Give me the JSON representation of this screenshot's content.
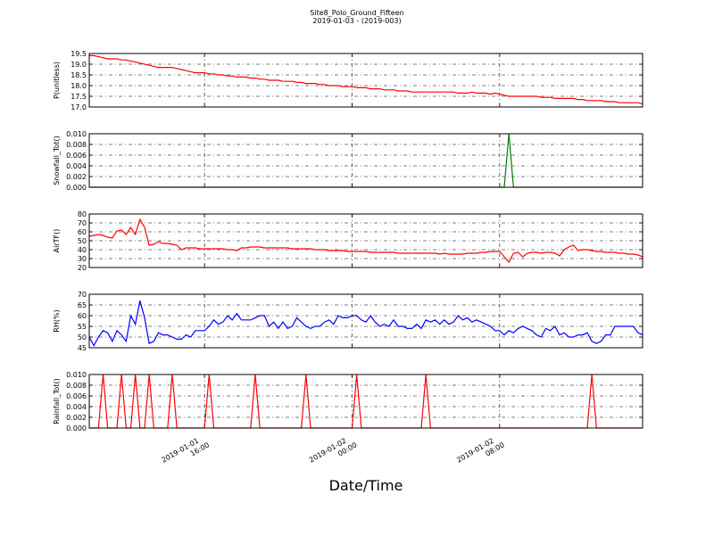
{
  "chart_data": {
    "type": "line",
    "title": "Site8_Polo_Ground_Fifteen",
    "subtitle": "2019-01-03 - (2019-003)",
    "xlabel": "Date/Time",
    "grid": true,
    "x": [
      "2019-01-01T09:45",
      "2019-01-01T10:00",
      "2019-01-01T10:15",
      "2019-01-01T10:30",
      "2019-01-01T10:45",
      "2019-01-01T11:00",
      "2019-01-01T11:15",
      "2019-01-01T11:30",
      "2019-01-01T11:45",
      "2019-01-01T12:00",
      "2019-01-01T12:15",
      "2019-01-01T12:30",
      "2019-01-01T12:45",
      "2019-01-01T13:00",
      "2019-01-01T13:15",
      "2019-01-01T13:30",
      "2019-01-01T13:45",
      "2019-01-01T14:00",
      "2019-01-01T14:15",
      "2019-01-01T14:30",
      "2019-01-01T14:45",
      "2019-01-01T15:00",
      "2019-01-01T15:15",
      "2019-01-01T15:30",
      "2019-01-01T15:45",
      "2019-01-01T16:00",
      "2019-01-01T16:15",
      "2019-01-01T16:30",
      "2019-01-01T16:45",
      "2019-01-01T17:00",
      "2019-01-01T17:15",
      "2019-01-01T17:30",
      "2019-01-01T17:45",
      "2019-01-01T18:00",
      "2019-01-01T18:15",
      "2019-01-01T18:30",
      "2019-01-01T18:45",
      "2019-01-01T19:00",
      "2019-01-01T19:15",
      "2019-01-01T19:30",
      "2019-01-01T19:45",
      "2019-01-01T20:00",
      "2019-01-01T20:15",
      "2019-01-01T20:30",
      "2019-01-01T20:45",
      "2019-01-01T21:00",
      "2019-01-01T21:15",
      "2019-01-01T21:30",
      "2019-01-01T21:45",
      "2019-01-01T22:00",
      "2019-01-01T22:15",
      "2019-01-01T22:30",
      "2019-01-01T22:45",
      "2019-01-01T23:00",
      "2019-01-01T23:15",
      "2019-01-01T23:30",
      "2019-01-01T23:45",
      "2019-01-02T00:00",
      "2019-01-02T00:15",
      "2019-01-02T00:30",
      "2019-01-02T00:45",
      "2019-01-02T01:00",
      "2019-01-02T01:15",
      "2019-01-02T01:30",
      "2019-01-02T01:45",
      "2019-01-02T02:00",
      "2019-01-02T02:15",
      "2019-01-02T02:30",
      "2019-01-02T02:45",
      "2019-01-02T03:00",
      "2019-01-02T03:15",
      "2019-01-02T03:30",
      "2019-01-02T03:45",
      "2019-01-02T04:00",
      "2019-01-02T04:15",
      "2019-01-02T04:30",
      "2019-01-02T04:45",
      "2019-01-02T05:00",
      "2019-01-02T05:15",
      "2019-01-02T05:30",
      "2019-01-02T05:45",
      "2019-01-02T06:00",
      "2019-01-02T06:15",
      "2019-01-02T06:30",
      "2019-01-02T06:45",
      "2019-01-02T07:00",
      "2019-01-02T07:15",
      "2019-01-02T07:30",
      "2019-01-02T07:45",
      "2019-01-02T08:00",
      "2019-01-02T08:15",
      "2019-01-02T08:30",
      "2019-01-02T08:45",
      "2019-01-02T09:00",
      "2019-01-02T09:15",
      "2019-01-02T09:30",
      "2019-01-02T09:45",
      "2019-01-02T10:00",
      "2019-01-02T10:15",
      "2019-01-02T10:30",
      "2019-01-02T10:45",
      "2019-01-02T11:00",
      "2019-01-02T11:15",
      "2019-01-02T11:30",
      "2019-01-02T11:45",
      "2019-01-02T12:00",
      "2019-01-02T12:15",
      "2019-01-02T12:30",
      "2019-01-02T12:45",
      "2019-01-02T13:00",
      "2019-01-02T13:15",
      "2019-01-02T13:30",
      "2019-01-02T13:45",
      "2019-01-02T14:00",
      "2019-01-02T14:15",
      "2019-01-02T14:30",
      "2019-01-02T14:45",
      "2019-01-02T15:00",
      "2019-01-02T15:15",
      "2019-01-02T15:30",
      "2019-01-02T15:45"
    ],
    "xlim": [
      "2019-01-01T09:45",
      "2019-01-02T15:45"
    ],
    "xticks": [
      {
        "value": "2019-01-01T16:00",
        "label": [
          "2019-01-01",
          "16:00"
        ]
      },
      {
        "value": "2019-01-02T00:00",
        "label": [
          "2019-01-02",
          "00:00"
        ]
      },
      {
        "value": "2019-01-02T08:00",
        "label": [
          "2019-01-02",
          "08:00"
        ]
      }
    ],
    "panels": [
      {
        "ylabel": "P(unitless)",
        "ylim": [
          17.0,
          19.5
        ],
        "yticks": [
          {
            "value": 17,
            "label": "17.0"
          },
          17.5,
          {
            "value": 18,
            "label": "18.0"
          },
          18.5,
          {
            "value": 19,
            "label": "19.0"
          },
          19.5
        ],
        "series": [
          {
            "color": "#ff0000",
            "values": [
              19.4,
              19.4,
              19.35,
              19.3,
              19.25,
              19.25,
              19.25,
              19.2,
              19.2,
              19.15,
              19.1,
              19.05,
              19.0,
              18.95,
              18.9,
              18.85,
              18.85,
              18.85,
              18.85,
              18.8,
              18.75,
              18.7,
              18.65,
              18.6,
              18.6,
              18.6,
              18.55,
              18.55,
              18.5,
              18.5,
              18.45,
              18.45,
              18.4,
              18.4,
              18.4,
              18.35,
              18.35,
              18.3,
              18.3,
              18.25,
              18.25,
              18.25,
              18.2,
              18.2,
              18.2,
              18.15,
              18.15,
              18.1,
              18.1,
              18.1,
              18.05,
              18.05,
              18.0,
              18.0,
              18.0,
              17.95,
              17.95,
              17.95,
              17.9,
              17.9,
              17.9,
              17.85,
              17.85,
              17.85,
              17.8,
              17.8,
              17.8,
              17.75,
              17.75,
              17.75,
              17.7,
              17.7,
              17.7,
              17.7,
              17.7,
              17.7,
              17.7,
              17.7,
              17.7,
              17.7,
              17.65,
              17.65,
              17.65,
              17.7,
              17.65,
              17.65,
              17.65,
              17.6,
              17.65,
              17.6,
              17.55,
              17.5,
              17.5,
              17.5,
              17.5,
              17.5,
              17.5,
              17.5,
              17.45,
              17.45,
              17.45,
              17.4,
              17.4,
              17.4,
              17.4,
              17.4,
              17.35,
              17.35,
              17.3,
              17.3,
              17.3,
              17.3,
              17.25,
              17.25,
              17.25,
              17.2,
              17.2,
              17.2,
              17.2,
              17.2,
              17.15
            ]
          }
        ]
      },
      {
        "ylabel": "Snowfall_Tot()",
        "ylim": [
          0,
          0.01
        ],
        "yticks": [
          {
            "value": 0,
            "label": "0.000"
          },
          {
            "value": 0.002,
            "label": "0.002"
          },
          {
            "value": 0.004,
            "label": "0.004"
          },
          {
            "value": 0.006,
            "label": "0.006"
          },
          {
            "value": 0.008,
            "label": "0.008"
          },
          {
            "value": 0.01,
            "label": "0.010"
          }
        ],
        "series": [
          {
            "color": "#008000",
            "values": [
              0,
              0,
              0,
              0,
              0,
              0,
              0,
              0,
              0,
              0,
              0,
              0,
              0,
              0,
              0,
              0,
              0,
              0,
              0,
              0,
              0,
              0,
              0,
              0,
              0,
              0,
              0,
              0,
              0,
              0,
              0,
              0,
              0,
              0,
              0,
              0,
              0,
              0,
              0,
              0,
              0,
              0,
              0,
              0,
              0,
              0,
              0,
              0,
              0,
              0,
              0,
              0,
              0,
              0,
              0,
              0,
              0,
              0,
              0,
              0,
              0,
              0,
              0,
              0,
              0,
              0,
              0,
              0,
              0,
              0,
              0,
              0,
              0,
              0,
              0,
              0,
              0,
              0,
              0,
              0,
              0,
              0,
              0,
              0,
              0,
              0,
              0,
              0,
              0,
              0,
              0,
              0.01,
              0,
              0,
              0,
              0,
              0,
              0,
              0,
              0,
              0,
              0,
              0,
              0,
              0,
              0,
              0,
              0,
              0,
              0,
              0,
              0,
              0,
              0,
              0,
              0,
              0,
              0,
              0,
              0,
              0
            ]
          }
        ]
      },
      {
        "ylabel": "AirTF()",
        "ylim": [
          20,
          80
        ],
        "yticks": [
          20,
          30,
          40,
          50,
          60,
          70,
          80
        ],
        "series": [
          {
            "color": "#ff0000",
            "values": [
              55,
              56,
              57,
              56,
              54,
              53,
              61,
              62,
              57,
              65,
              57,
              74,
              65,
              45,
              46,
              49,
              47,
              47,
              46,
              45,
              40,
              42,
              42,
              42,
              41,
              41,
              41,
              41,
              41,
              41,
              40,
              40,
              39,
              42,
              42,
              43,
              43,
              43,
              42,
              42,
              42,
              42,
              42,
              42,
              41,
              41,
              41,
              41,
              41,
              40,
              40,
              40,
              39,
              39,
              39,
              39,
              38,
              38,
              38,
              38,
              38,
              37,
              37,
              37,
              37,
              37,
              37,
              36,
              36,
              36,
              36,
              36,
              36,
              36,
              36,
              36,
              35,
              36,
              35,
              35,
              35,
              35,
              36,
              36,
              36,
              37,
              37,
              38,
              38,
              38,
              32,
              26,
              36,
              37,
              32,
              36,
              37,
              37,
              36,
              37,
              37,
              36,
              33,
              40,
              43,
              45,
              39,
              40,
              40,
              39,
              38,
              38,
              37,
              37,
              37,
              36,
              36,
              35,
              35,
              34,
              32
            ]
          }
        ]
      },
      {
        "ylabel": "RH(%)",
        "ylim": [
          45,
          70
        ],
        "yticks": [
          45,
          50,
          55,
          60,
          65,
          70
        ],
        "series": [
          {
            "color": "#0000ff",
            "values": [
              50,
              46,
              50,
              53,
              52,
              48,
              53,
              51,
              48,
              60,
              56,
              67,
              59,
              47,
              48,
              52,
              51,
              51,
              50,
              49,
              49,
              51,
              50,
              53,
              53,
              53,
              55,
              58,
              56,
              57,
              60,
              58,
              61,
              58,
              58,
              58,
              59,
              60,
              60,
              55,
              57,
              54,
              57,
              54,
              55,
              59,
              57,
              55,
              54,
              55,
              55,
              57,
              58,
              56,
              60,
              59,
              59,
              60,
              60,
              58,
              57,
              60,
              57,
              55,
              56,
              55,
              58,
              55,
              55,
              54,
              54,
              56,
              54,
              58,
              57,
              58,
              56,
              58,
              56,
              57,
              60,
              58,
              59,
              57,
              58,
              57,
              56,
              55,
              53,
              53,
              51,
              53,
              52,
              54,
              55,
              54,
              53,
              51,
              50,
              54,
              53,
              55,
              51,
              52,
              50,
              50,
              51,
              51,
              52,
              48,
              47,
              48,
              51,
              51,
              55,
              55,
              55,
              55,
              55,
              52,
              51
            ]
          }
        ]
      },
      {
        "ylabel": "Rainfall_Tot()",
        "ylim": [
          0,
          0.01
        ],
        "yticks": [
          {
            "value": 0,
            "label": "0.000"
          },
          {
            "value": 0.002,
            "label": "0.002"
          },
          {
            "value": 0.004,
            "label": "0.004"
          },
          {
            "value": 0.006,
            "label": "0.006"
          },
          {
            "value": 0.008,
            "label": "0.008"
          },
          {
            "value": 0.01,
            "label": "0.010"
          }
        ],
        "series": [
          {
            "color": "#ff0000",
            "values": [
              0,
              0,
              0,
              0.01,
              0,
              0,
              0,
              0.01,
              0,
              0,
              0.01,
              0,
              0,
              0.01,
              0,
              0,
              0,
              0,
              0.01,
              0,
              0,
              0,
              0,
              0,
              0,
              0,
              0.01,
              0,
              0,
              0,
              0,
              0,
              0,
              0,
              0,
              0,
              0.01,
              0,
              0,
              0,
              0,
              0,
              0,
              0,
              0,
              0,
              0,
              0.01,
              0,
              0,
              0,
              0,
              0,
              0,
              0,
              0,
              0,
              0,
              0.01,
              0,
              0,
              0,
              0,
              0,
              0,
              0,
              0,
              0,
              0,
              0,
              0,
              0,
              0,
              0.01,
              0,
              0,
              0,
              0,
              0,
              0,
              0,
              0,
              0,
              0,
              0,
              0,
              0,
              0,
              0,
              0,
              0,
              0,
              0,
              0,
              0,
              0,
              0,
              0,
              0,
              0,
              0,
              0,
              0,
              0,
              0,
              0,
              0,
              0,
              0,
              0.01,
              0,
              0,
              0,
              0,
              0,
              0,
              0,
              0,
              0,
              0,
              0
            ]
          }
        ]
      }
    ]
  }
}
